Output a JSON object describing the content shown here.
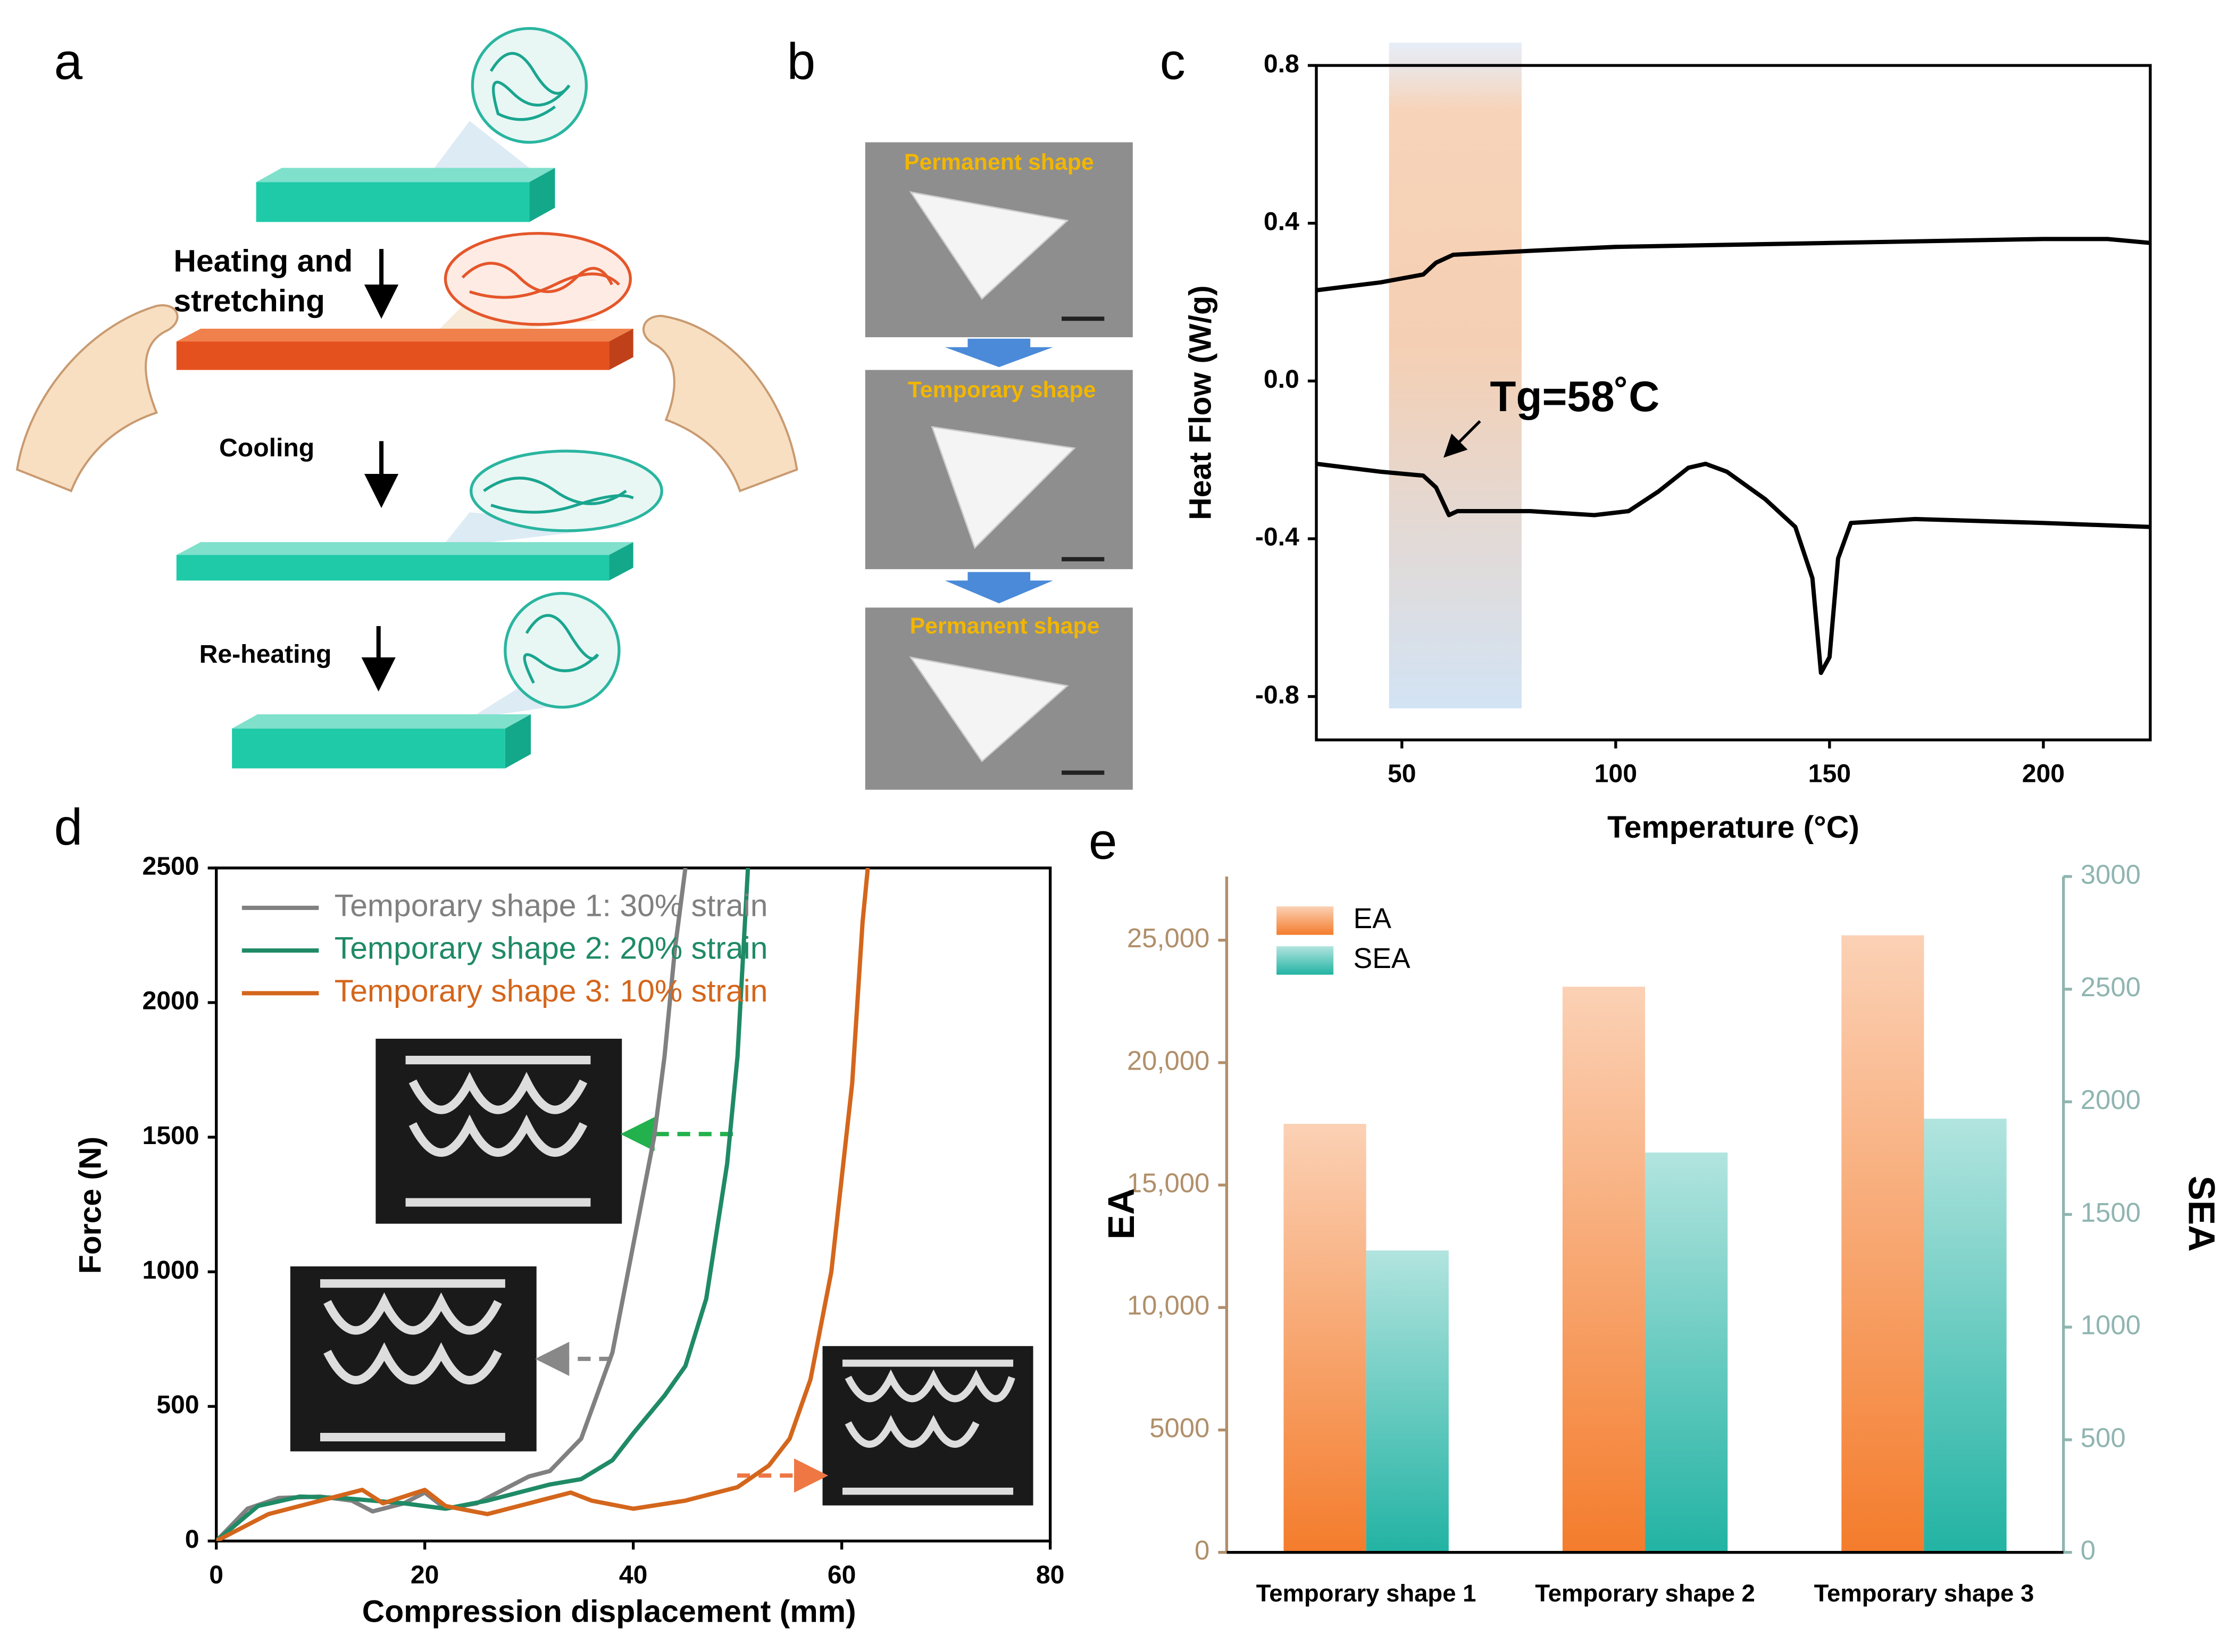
{
  "panel_labels": [
    "a",
    "b",
    "c",
    "d",
    "e"
  ],
  "schematic": {
    "heating_lines": [
      "Heating and",
      "stretching"
    ],
    "cooling": "Cooling",
    "reheating": "Re-heating"
  },
  "photos": {
    "captions": [
      "Permanent shape",
      "Temporary shape",
      "Permanent shape"
    ]
  },
  "chart_data": [
    {
      "type": "line",
      "xlabel": "Temperature (°C)",
      "ylabel": "Heat Flow (W/g)",
      "annotation": "Tg=58˚C",
      "xlim": [
        30,
        225
      ],
      "xticks": [
        50,
        100,
        150,
        200
      ],
      "ylim": [
        -0.91,
        0.8
      ],
      "yticks": [
        -0.8,
        -0.4,
        {
          "value": 0,
          "label": "0.0"
        },
        0.4,
        0.8
      ],
      "band": [
        47,
        78
      ],
      "series": [
        {
          "color": "#000000",
          "x": [
            30,
            45,
            55,
            58,
            62,
            80,
            100,
            150,
            200,
            215,
            225
          ],
          "values": [
            0.23,
            0.25,
            0.27,
            0.3,
            0.32,
            0.33,
            0.34,
            0.35,
            0.36,
            0.36,
            0.35
          ]
        },
        {
          "color": "#000000",
          "x": [
            30,
            45,
            55,
            58,
            61,
            63,
            80,
            95,
            103,
            110,
            117,
            121,
            126,
            135,
            142,
            146,
            148,
            150,
            152,
            155,
            170,
            200,
            225
          ],
          "values": [
            -0.21,
            -0.23,
            -0.24,
            -0.27,
            -0.34,
            -0.33,
            -0.33,
            -0.34,
            -0.33,
            -0.28,
            -0.22,
            -0.21,
            -0.23,
            -0.3,
            -0.37,
            -0.5,
            -0.74,
            -0.7,
            -0.45,
            -0.36,
            -0.35,
            -0.36,
            -0.37
          ]
        }
      ]
    },
    {
      "type": "line",
      "xlabel": "Compression displacement (mm)",
      "ylabel": "Force (N)",
      "xlim": [
        0,
        80
      ],
      "xticks": [
        0,
        20,
        40,
        60,
        80
      ],
      "ylim": [
        0,
        2500
      ],
      "yticks": [
        0,
        500,
        1000,
        1500,
        2000,
        2500
      ],
      "legend": "upper-left",
      "series": [
        {
          "name": "Temporary shape 1: 30% strain",
          "color": "#808080",
          "x": [
            0,
            3,
            6,
            10,
            13,
            15,
            18,
            20,
            22,
            25,
            28,
            30,
            32,
            35,
            38,
            40,
            42,
            43,
            44,
            45
          ],
          "values": [
            0,
            120,
            160,
            165,
            150,
            110,
            140,
            180,
            120,
            140,
            200,
            240,
            260,
            380,
            700,
            1100,
            1500,
            1800,
            2200,
            2500
          ]
        },
        {
          "name": "Temporary shape 2: 20% strain",
          "color": "#1f8a66",
          "x": [
            0,
            4,
            8,
            12,
            15,
            18,
            22,
            26,
            30,
            32,
            35,
            38,
            40,
            43,
            45,
            47,
            49,
            50,
            51
          ],
          "values": [
            0,
            130,
            165,
            160,
            150,
            140,
            120,
            150,
            190,
            210,
            230,
            300,
            400,
            540,
            650,
            900,
            1400,
            1800,
            2500
          ]
        },
        {
          "name": "Temporary shape 3: 10% strain",
          "color": "#d4661c",
          "x": [
            0,
            5,
            10,
            14,
            16,
            20,
            22,
            26,
            30,
            34,
            36,
            40,
            45,
            50,
            53,
            55,
            57,
            59,
            61,
            62,
            62.5
          ],
          "values": [
            0,
            100,
            150,
            190,
            140,
            190,
            130,
            100,
            140,
            180,
            150,
            120,
            150,
            200,
            280,
            380,
            600,
            1000,
            1700,
            2300,
            2500
          ]
        }
      ]
    },
    {
      "type": "bar",
      "categories": [
        "Temporary shape 1",
        "Temporary shape 2",
        "Temporary shape 3"
      ],
      "ylabel": "EA",
      "y2label": "SEA",
      "ylim": [
        0,
        27600
      ],
      "yticks": [
        0,
        5000,
        {
          "value": 10000,
          "label": "10,000"
        },
        {
          "value": 15000,
          "label": "15,000"
        },
        {
          "value": 20000,
          "label": "20,000"
        },
        {
          "value": 25000,
          "label": "25,000"
        }
      ],
      "y2lim": [
        0,
        3000
      ],
      "y2ticks": [
        0,
        500,
        1000,
        1500,
        2000,
        2500,
        3000
      ],
      "axis_colors": {
        "y": "#b08f6a",
        "y2": "#8fb5b0"
      },
      "legend": "upper-left",
      "series": [
        {
          "name": "EA",
          "color": "#f47c2c",
          "values": [
            17500,
            23100,
            25200
          ]
        },
        {
          "name": "SEA",
          "color": "#22b3a3",
          "axis": "y2",
          "values": [
            1340,
            1775,
            1925
          ]
        }
      ]
    }
  ]
}
